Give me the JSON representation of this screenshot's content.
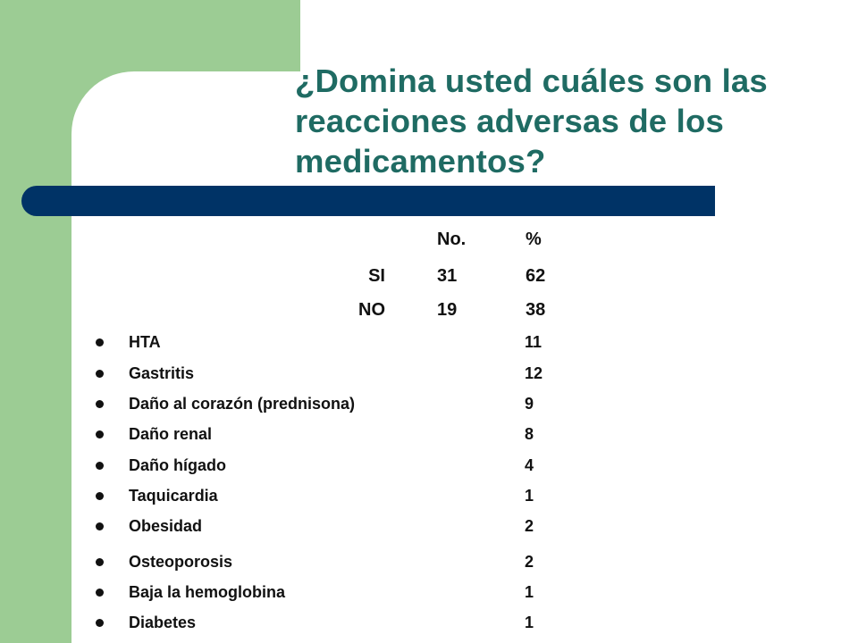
{
  "title_lines": [
    "¿Domina usted cuáles son las",
    "reacciones adversas de los",
    "medicamentos?"
  ],
  "table": {
    "headers": {
      "no": "No.",
      "pct": "%"
    },
    "rows": [
      {
        "label": "SI",
        "no": "31",
        "pct": "62"
      },
      {
        "label": "NO",
        "no": "19",
        "pct": "38"
      }
    ]
  },
  "reactions": [
    {
      "label": "HTA",
      "value": "11"
    },
    {
      "label": "Gastritis",
      "value": "12"
    },
    {
      "label": "Daño al corazón (prednisona)",
      "value": "9"
    },
    {
      "label": "Daño renal",
      "value": "8"
    },
    {
      "label": "Daño hígado",
      "value": "4"
    },
    {
      "label": "Taquicardia",
      "value": "1"
    },
    {
      "label": "Obesidad",
      "value": "2"
    },
    {
      "label": "Osteoporosis",
      "value": "2"
    },
    {
      "label": "Baja la hemoglobina",
      "value": "1"
    },
    {
      "label": "Diabetes",
      "value": "1"
    }
  ],
  "colors": {
    "accent_green": "#9ccc94",
    "title_teal": "#1f6b63",
    "bar_navy": "#003366"
  }
}
